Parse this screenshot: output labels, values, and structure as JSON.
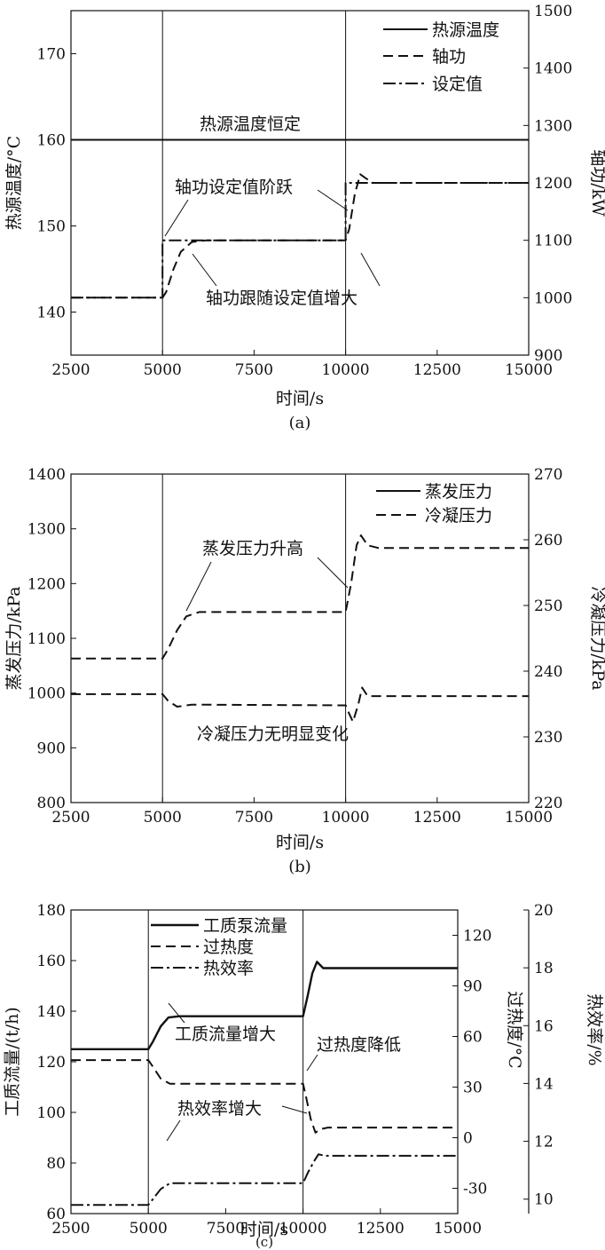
{
  "chart_data": [
    {
      "panel": "(a)",
      "type": "line",
      "xlabel": "时间/s",
      "ylabel_left": "热源温度/°C",
      "ylabel_right": "轴功/kW",
      "xlim": [
        2500,
        15000
      ],
      "ylim_left": [
        135,
        175
      ],
      "ylim_right": [
        900,
        1500
      ],
      "xticks": [
        "2500",
        "5000",
        "7500",
        "10000",
        "12500",
        "15000"
      ],
      "yticks_left": [
        "140",
        "150",
        "160",
        "170"
      ],
      "yticks_right": [
        "900",
        "1000",
        "1100",
        "1200",
        "1300",
        "1400",
        "1500"
      ],
      "vlines": [
        5000,
        10000
      ],
      "legend_position": "top-right",
      "series": [
        {
          "name": "热源温度",
          "axis": "left",
          "style": "solid",
          "points": [
            [
              2500,
              160
            ],
            [
              15000,
              160
            ]
          ]
        },
        {
          "name": "轴功",
          "axis": "right",
          "style": "dashed",
          "points": [
            [
              2500,
              1000
            ],
            [
              5000,
              1000
            ],
            [
              5100,
              1010
            ],
            [
              5300,
              1050
            ],
            [
              5500,
              1080
            ],
            [
              5800,
              1097
            ],
            [
              6200,
              1100
            ],
            [
              10000,
              1100
            ],
            [
              10100,
              1120
            ],
            [
              10250,
              1180
            ],
            [
              10400,
              1215
            ],
            [
              10550,
              1208
            ],
            [
              10750,
              1200
            ],
            [
              15000,
              1200
            ]
          ]
        },
        {
          "name": "设定值",
          "axis": "right",
          "style": "dashdot",
          "points": [
            [
              2500,
              1000
            ],
            [
              5000,
              1000
            ],
            [
              5000,
              1100
            ],
            [
              10000,
              1100
            ],
            [
              10000,
              1200
            ],
            [
              15000,
              1200
            ]
          ]
        }
      ],
      "annotations": [
        "热源温度恒定",
        "轴功设定值阶跃",
        "轴功跟随设定值增大"
      ]
    },
    {
      "panel": "(b)",
      "type": "line",
      "xlabel": "时间/s",
      "ylabel_left": "蒸发压力/kPa",
      "ylabel_right": "冷凝压力/kPa",
      "xlim": [
        2500,
        15000
      ],
      "ylim_left": [
        800,
        1400
      ],
      "ylim_right": [
        220,
        270
      ],
      "xticks": [
        "2500",
        "5000",
        "7500",
        "10000",
        "12500",
        "15000"
      ],
      "yticks_left": [
        "800",
        "900",
        "1000",
        "1100",
        "1200",
        "1300",
        "1400"
      ],
      "yticks_right": [
        "220",
        "230",
        "240",
        "250",
        "260",
        "270"
      ],
      "vlines": [
        5000,
        10000
      ],
      "legend_position": "top-right",
      "series": [
        {
          "name": "蒸发压力",
          "axis": "left",
          "style": "dashed",
          "points": [
            [
              2500,
              1063
            ],
            [
              5000,
              1063
            ],
            [
              5150,
              1080
            ],
            [
              5400,
              1115
            ],
            [
              5650,
              1140
            ],
            [
              6000,
              1148
            ],
            [
              10000,
              1148
            ],
            [
              10150,
              1200
            ],
            [
              10300,
              1270
            ],
            [
              10420,
              1288
            ],
            [
              10600,
              1270
            ],
            [
              10900,
              1265
            ],
            [
              15000,
              1265
            ]
          ]
        },
        {
          "name": "冷凝压力",
          "axis": "right",
          "style": "dashed",
          "points": [
            [
              2500,
              236.5
            ],
            [
              5000,
              236.5
            ],
            [
              5150,
              235.5
            ],
            [
              5400,
              234.6
            ],
            [
              5800,
              234.9
            ],
            [
              10000,
              234.8
            ],
            [
              10100,
              233.5
            ],
            [
              10200,
              232.3
            ],
            [
              10350,
              235
            ],
            [
              10450,
              237.5
            ],
            [
              10600,
              236.2
            ],
            [
              10900,
              236.2
            ],
            [
              15000,
              236.2
            ]
          ]
        }
      ],
      "annotations": [
        "蒸发压力升高",
        "冷凝压力无明显变化"
      ]
    },
    {
      "panel": "(c)",
      "type": "line",
      "xlabel": "时间/s",
      "ylabel_left": "工质流量/(t/h)",
      "ylabel_mid": "过热度/°C",
      "ylabel_right": "热效率/%",
      "xlim": [
        2500,
        15000
      ],
      "ylim_left": [
        60,
        180
      ],
      "ylim_mid": [
        -45,
        135
      ],
      "ylim_right": [
        9.5,
        20
      ],
      "xticks": [
        "2500",
        "5000",
        "7500",
        "10000",
        "12500",
        "15000"
      ],
      "yticks_left": [
        "60",
        "80",
        "100",
        "120",
        "140",
        "160",
        "180"
      ],
      "yticks_mid": [
        "-30",
        "0",
        "30",
        "60",
        "90",
        "120"
      ],
      "yticks_right": [
        "10",
        "12",
        "14",
        "16",
        "18",
        "20"
      ],
      "vlines": [
        5000,
        10000
      ],
      "legend_position": "top-left",
      "series": [
        {
          "name": "工质泵流量",
          "axis": "left",
          "style": "solid",
          "points": [
            [
              2500,
              125
            ],
            [
              5000,
              125
            ],
            [
              5150,
              128
            ],
            [
              5400,
              134
            ],
            [
              5650,
              137.5
            ],
            [
              6000,
              138
            ],
            [
              10000,
              138
            ],
            [
              10150,
              146
            ],
            [
              10300,
              155
            ],
            [
              10450,
              159.5
            ],
            [
              10650,
              157
            ],
            [
              11000,
              157
            ],
            [
              15000,
              157
            ]
          ]
        },
        {
          "name": "过热度",
          "axis": "mid",
          "style": "dashed",
          "points": [
            [
              2500,
              46
            ],
            [
              5000,
              46
            ],
            [
              5150,
              42
            ],
            [
              5400,
              35
            ],
            [
              5700,
              32
            ],
            [
              6200,
              32
            ],
            [
              10000,
              32
            ],
            [
              10100,
              24
            ],
            [
              10250,
              11
            ],
            [
              10400,
              3
            ],
            [
              10550,
              5
            ],
            [
              10800,
              6
            ],
            [
              15000,
              6
            ]
          ]
        },
        {
          "name": "热效率",
          "axis": "right",
          "style": "dashdot",
          "points": [
            [
              2500,
              9.8
            ],
            [
              5000,
              9.8
            ],
            [
              5150,
              10
            ],
            [
              5400,
              10.35
            ],
            [
              5700,
              10.55
            ],
            [
              6200,
              10.55
            ],
            [
              10000,
              10.55
            ],
            [
              10150,
              10.9
            ],
            [
              10350,
              11.3
            ],
            [
              10500,
              11.55
            ],
            [
              10700,
              11.5
            ],
            [
              15000,
              11.5
            ]
          ]
        }
      ],
      "annotations": [
        "工质流量增大",
        "过热度降低",
        "热效率增大"
      ]
    }
  ]
}
